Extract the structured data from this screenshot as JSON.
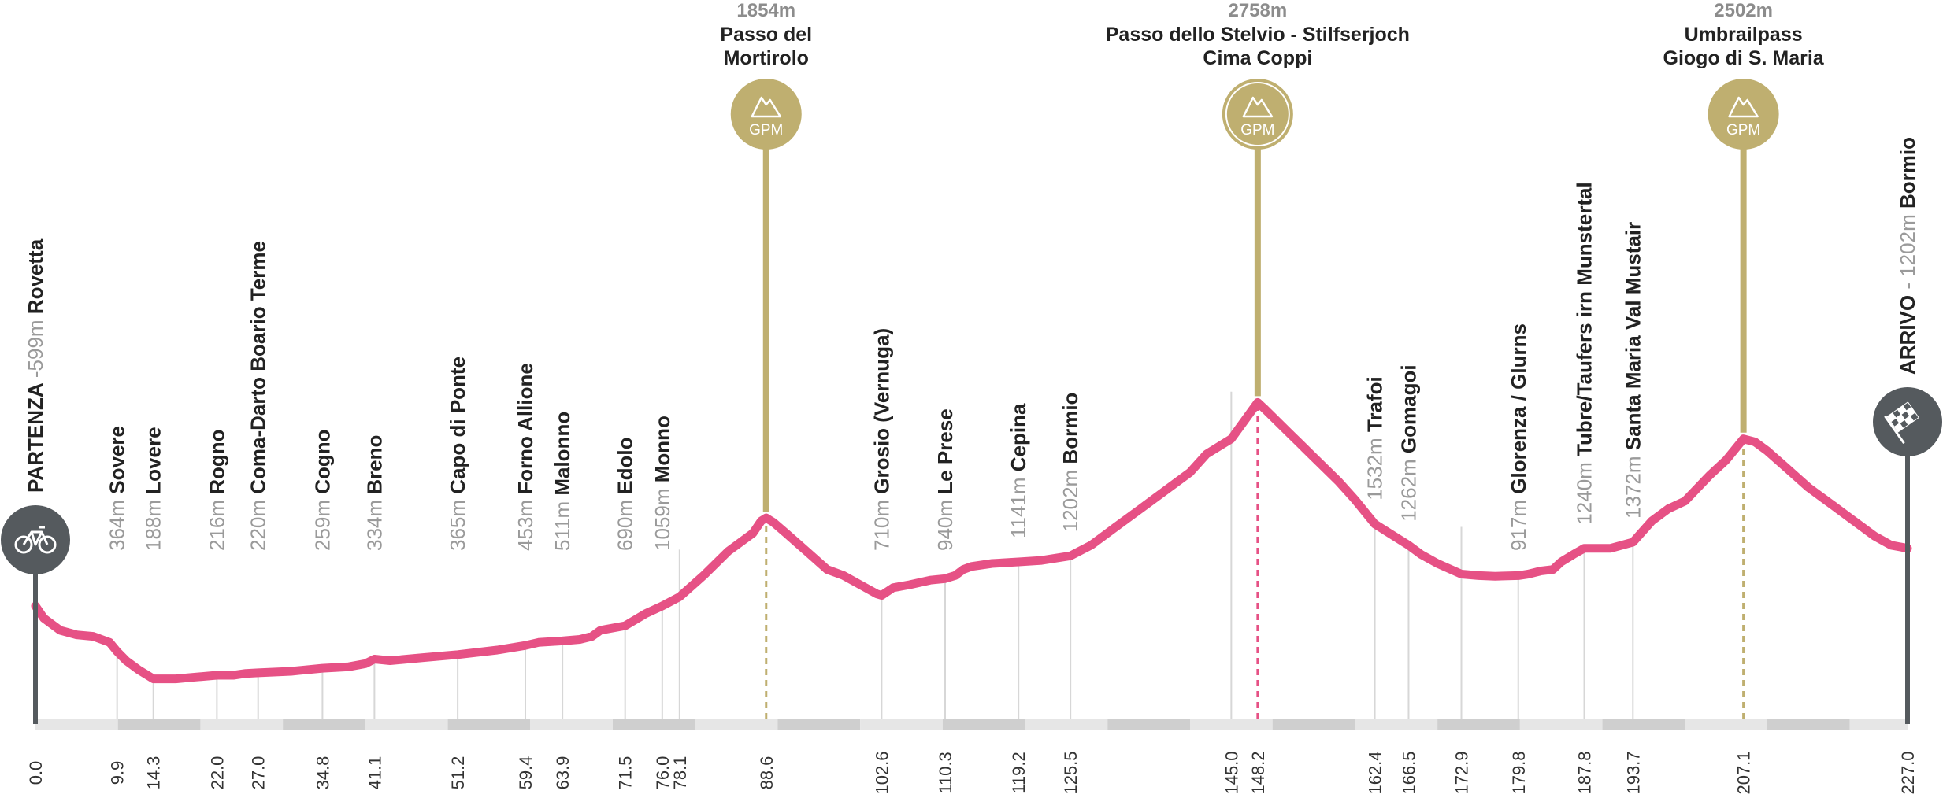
{
  "chart_data": {
    "type": "area",
    "title": "",
    "xlabel": "",
    "ylabel": "",
    "xlim": [
      0,
      227
    ],
    "profile": [
      [
        0,
        600
      ],
      [
        1,
        560
      ],
      [
        3,
        520
      ],
      [
        5,
        505
      ],
      [
        7,
        500
      ],
      [
        9,
        480
      ],
      [
        9.9,
        450
      ],
      [
        11,
        420
      ],
      [
        12.5,
        390
      ],
      [
        14.3,
        360
      ],
      [
        17,
        360
      ],
      [
        19,
        365
      ],
      [
        22,
        372
      ],
      [
        24,
        372
      ],
      [
        25.5,
        378
      ],
      [
        27,
        380
      ],
      [
        31,
        385
      ],
      [
        34.8,
        395
      ],
      [
        38,
        400
      ],
      [
        40,
        410
      ],
      [
        41.1,
        425
      ],
      [
        43,
        420
      ],
      [
        47,
        430
      ],
      [
        51.2,
        440
      ],
      [
        56,
        455
      ],
      [
        59.4,
        470
      ],
      [
        61,
        480
      ],
      [
        63.9,
        485
      ],
      [
        66,
        490
      ],
      [
        67.5,
        500
      ],
      [
        68.5,
        520
      ],
      [
        71.5,
        535
      ],
      [
        74,
        575
      ],
      [
        76,
        600
      ],
      [
        78.1,
        630
      ],
      [
        81,
        700
      ],
      [
        84,
        780
      ],
      [
        87,
        840
      ],
      [
        88,
        880
      ],
      [
        88.6,
        890
      ],
      [
        89.5,
        875
      ],
      [
        91,
        840
      ],
      [
        93.5,
        780
      ],
      [
        96,
        720
      ],
      [
        98,
        700
      ],
      [
        100,
        670
      ],
      [
        102,
        640
      ],
      [
        102.6,
        635
      ],
      [
        104,
        660
      ],
      [
        106,
        670
      ],
      [
        108.5,
        685
      ],
      [
        110.3,
        690
      ],
      [
        111.5,
        700
      ],
      [
        112.5,
        720
      ],
      [
        113.5,
        730
      ],
      [
        116,
        740
      ],
      [
        119.2,
        745
      ],
      [
        122,
        750
      ],
      [
        125.5,
        765
      ],
      [
        128,
        800
      ],
      [
        131,
        860
      ],
      [
        134,
        920
      ],
      [
        137,
        980
      ],
      [
        140,
        1040
      ],
      [
        142,
        1100
      ],
      [
        145,
        1150
      ],
      [
        148.2,
        1270
      ],
      [
        149,
        1250
      ],
      [
        152,
        1170
      ],
      [
        155,
        1090
      ],
      [
        158,
        1010
      ],
      [
        160,
        950
      ],
      [
        162.4,
        870
      ],
      [
        166.5,
        800
      ],
      [
        168,
        770
      ],
      [
        170,
        740
      ],
      [
        172.9,
        705
      ],
      [
        175,
        700
      ],
      [
        177,
        698
      ],
      [
        179.8,
        700
      ],
      [
        181,
        705
      ],
      [
        182.5,
        715
      ],
      [
        184,
        720
      ],
      [
        185,
        745
      ],
      [
        186.5,
        770
      ],
      [
        187.8,
        790
      ],
      [
        189,
        790
      ],
      [
        191,
        790
      ],
      [
        193.7,
        810
      ],
      [
        196,
        880
      ],
      [
        198,
        920
      ],
      [
        200,
        945
      ],
      [
        203,
        1030
      ],
      [
        205,
        1080
      ],
      [
        207.1,
        1150
      ],
      [
        208.5,
        1140
      ],
      [
        210,
        1110
      ],
      [
        212.5,
        1050
      ],
      [
        215,
        990
      ],
      [
        218,
        930
      ],
      [
        220,
        890
      ],
      [
        223,
        830
      ],
      [
        225,
        800
      ],
      [
        227,
        790
      ]
    ],
    "peaks": [
      {
        "km": 88.6,
        "alt": "1854m",
        "name_lines": [
          "Passo del",
          "Mortirolo"
        ],
        "badge": "GPM",
        "cima_coppi": false
      },
      {
        "km": 148.2,
        "alt": "2758m",
        "name_lines": [
          "Passo dello Stelvio - Stilfserjoch",
          "Cima Coppi"
        ],
        "badge": "GPM",
        "cima_coppi": true
      },
      {
        "km": 207.1,
        "alt": "2502m",
        "name_lines": [
          "Umbrailpass",
          "Giogo di S. Maria"
        ],
        "badge": "GPM",
        "cima_coppi": false
      }
    ],
    "towns": [
      {
        "km": 9.9,
        "alt": "364m",
        "name": "Sovere"
      },
      {
        "km": 14.3,
        "alt": "188m",
        "name": "Lovere"
      },
      {
        "km": 22.0,
        "alt": "216m",
        "name": "Rogno"
      },
      {
        "km": 27.0,
        "alt": "220m",
        "name": "Coma-Darto Boario Terme"
      },
      {
        "km": 34.8,
        "alt": "259m",
        "name": "Cogno"
      },
      {
        "km": 41.1,
        "alt": "334m",
        "name": "Breno"
      },
      {
        "km": 51.2,
        "alt": "365m",
        "name": "Capo di Ponte"
      },
      {
        "km": 59.4,
        "alt": "453m",
        "name": "Forno Allione"
      },
      {
        "km": 63.9,
        "alt": "511m",
        "name": "Malonno"
      },
      {
        "km": 71.5,
        "alt": "690m",
        "name": "Edolo"
      },
      {
        "km": 76.0,
        "alt": "1059m",
        "name": "Monno"
      },
      {
        "km": 102.6,
        "alt": "710m",
        "name": "Grosio (Vernuga)"
      },
      {
        "km": 110.3,
        "alt": "940m",
        "name": "Le Prese"
      },
      {
        "km": 119.2,
        "alt": "1141m",
        "name": "Cepina"
      },
      {
        "km": 125.5,
        "alt": "1202m",
        "name": "Bormio"
      },
      {
        "km": 162.4,
        "alt": "1532m",
        "name": "Trafoi"
      },
      {
        "km": 166.5,
        "alt": "1262m",
        "name": "Gomagoi"
      },
      {
        "km": 179.8,
        "alt": "917m",
        "name": "Glorenza / Glurns"
      },
      {
        "km": 187.8,
        "alt": "1240m",
        "name": "Tubre/Taufers irn Munstertal"
      },
      {
        "km": 193.7,
        "alt": "1372m",
        "name": "Santa Maria Val Mustair"
      }
    ],
    "start": {
      "km": 0.0,
      "label": "PARTENZA",
      "alt": "599m",
      "name": "Rovetta",
      "icon": "bicycle-icon"
    },
    "finish": {
      "km": 227.0,
      "label": "ARRIVO",
      "alt": "1202m",
      "name": "Bormio",
      "icon": "checkered-flag-icon"
    },
    "km_ticks": [
      "0.0",
      "9.9",
      "14.3",
      "22.0",
      "27.0",
      "34.8",
      "41.1",
      "51.2",
      "59.4",
      "63.9",
      "71.5",
      "76.0",
      "78.1",
      "88.6",
      "102.6",
      "110.3",
      "119.2",
      "125.5",
      "145.0",
      "148.2",
      "162.4",
      "166.5",
      "172.9",
      "179.8",
      "187.8",
      "193.7",
      "207.1",
      "227.0"
    ],
    "km_tick_vals": [
      0.0,
      9.9,
      14.3,
      22.0,
      27.0,
      34.8,
      41.1,
      51.2,
      59.4,
      63.9,
      71.5,
      76.0,
      78.1,
      88.6,
      102.6,
      110.3,
      119.2,
      125.5,
      145.0,
      148.2,
      162.4,
      166.5,
      172.9,
      179.8,
      187.8,
      193.7,
      207.1,
      227.0
    ],
    "colors": {
      "profile": "#e65185",
      "gpm": "#bfaf70",
      "cima_coppi_line": "#e65185",
      "marker_dark": "#555a5e",
      "town_line": "#d7d7d7",
      "band_light": "#e6e6e6",
      "band_dark": "#cfcfcf"
    }
  }
}
